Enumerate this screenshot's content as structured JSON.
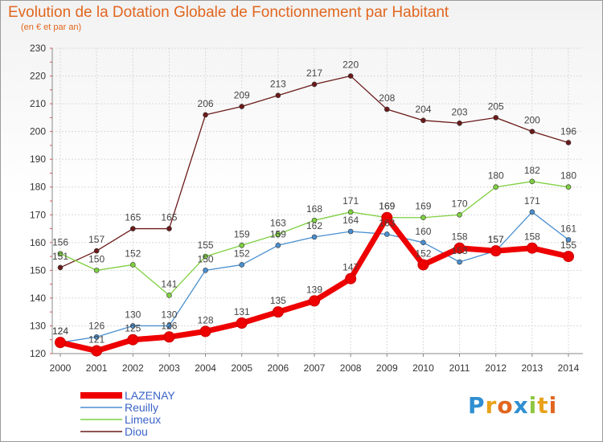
{
  "header": {
    "title": "Evolution de la Dotation Globale de Fonctionnement par Habitant",
    "subtitle": "(en € et par an)"
  },
  "logo": {
    "text": "Proxiti"
  },
  "chart_data": {
    "type": "line",
    "x": [
      "2000",
      "2001",
      "2002",
      "2003",
      "2004",
      "2005",
      "2006",
      "2007",
      "2008",
      "2009",
      "2010",
      "2011",
      "2012",
      "2013",
      "2014"
    ],
    "ylim": [
      120,
      230
    ],
    "yticks": [
      120,
      130,
      140,
      150,
      160,
      170,
      180,
      190,
      200,
      210,
      220,
      230
    ],
    "grid": true,
    "legend_position": "bottom-left",
    "series": [
      {
        "name": "LAZENAY",
        "color": "#ee0000",
        "values": [
          124,
          121,
          125,
          126,
          128,
          131,
          135,
          139,
          147,
          169,
          152,
          158,
          157,
          158,
          155
        ],
        "labels": [
          "124",
          "121",
          "125",
          "126",
          "128",
          "131",
          "135",
          "139",
          "147",
          "169",
          "152",
          "158",
          "157",
          "158",
          "155"
        ]
      },
      {
        "name": "Reuilly",
        "color": "#4a8fcf",
        "values": [
          124,
          126,
          130,
          130,
          150,
          152,
          159,
          162,
          164,
          163,
          160,
          153,
          157,
          171,
          161
        ],
        "labels": [
          "124",
          "126",
          "130",
          "130",
          "150",
          "152",
          "159",
          "162",
          "164",
          "163",
          "160",
          "153",
          "157",
          "171",
          "161"
        ]
      },
      {
        "name": "Limeux",
        "color": "#7fd040",
        "values": [
          156,
          150,
          152,
          141,
          155,
          159,
          163,
          168,
          171,
          169,
          169,
          170,
          180,
          182,
          180
        ],
        "labels": [
          "156",
          "150",
          "152",
          "141",
          "155",
          "159",
          "163",
          "168",
          "171",
          "169",
          "169",
          "170",
          "180",
          "182",
          "180"
        ]
      },
      {
        "name": "Diou",
        "color": "#6b1a1a",
        "values": [
          151,
          157,
          165,
          165,
          206,
          209,
          213,
          217,
          220,
          208,
          204,
          203,
          205,
          200,
          196
        ],
        "labels": [
          "151",
          "157",
          "165",
          "165",
          "206",
          "209",
          "213",
          "217",
          "220",
          "208",
          "204",
          "203",
          "205",
          "200",
          "196"
        ]
      }
    ]
  }
}
